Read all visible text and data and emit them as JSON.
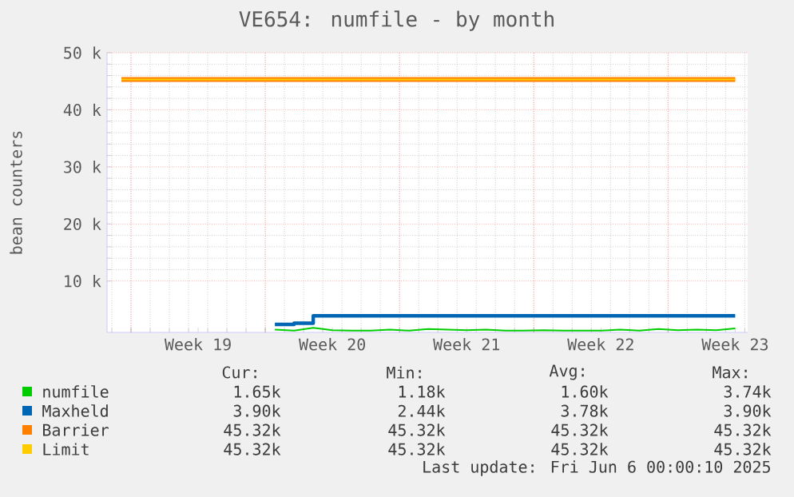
{
  "chart_data": {
    "type": "line",
    "title": "VE654: numfile - by month",
    "ylabel": "bean counters",
    "categories": [
      null,
      null,
      null,
      null,
      "Week 19",
      null,
      null,
      null,
      null,
      null,
      null,
      "Week 20",
      null,
      null,
      null,
      null,
      null,
      null,
      "Week 21",
      null,
      null,
      null,
      null,
      null,
      null,
      "Week 22",
      null,
      null,
      null,
      null,
      null,
      null,
      "Week 23"
    ],
    "ylim": [
      1000,
      50000
    ],
    "yticks": [
      {
        "value": 10000,
        "label": "10 k"
      },
      {
        "value": 20000,
        "label": "20 k"
      },
      {
        "value": 30000,
        "label": "30 k"
      },
      {
        "value": 40000,
        "label": "40 k"
      },
      {
        "value": 50000,
        "label": "50 k"
      }
    ],
    "grid": true,
    "legend": "bottom",
    "series": [
      {
        "name": "numfile",
        "color": "#00cc00",
        "values": [
          null,
          null,
          null,
          null,
          null,
          null,
          null,
          null,
          1500,
          1300,
          1800,
          1400,
          1300,
          1300,
          1500,
          1300,
          1600,
          1500,
          1400,
          1500,
          1300,
          1300,
          1400,
          1300,
          1300,
          1300,
          1500,
          1300,
          1600,
          1400,
          1500,
          1400,
          1700
        ]
      },
      {
        "name": "Maxheld",
        "type": "step",
        "color": "#0066b3",
        "values": [
          null,
          null,
          null,
          null,
          null,
          null,
          null,
          null,
          2400,
          2600,
          3900,
          3900,
          3900,
          3900,
          3900,
          3900,
          3900,
          3900,
          3900,
          3900,
          3900,
          3900,
          3900,
          3900,
          3900,
          3900,
          3900,
          3900,
          3900,
          3900,
          3900,
          3900,
          3900
        ]
      },
      {
        "name": "Barrier",
        "color": "#ff8000",
        "values": [
          45300,
          45300,
          45300,
          45300,
          45300,
          45300,
          45300,
          45300,
          45300,
          45300,
          45300,
          45300,
          45300,
          45300,
          45300,
          45300,
          45300,
          45300,
          45300,
          45300,
          45300,
          45300,
          45300,
          45300,
          45300,
          45300,
          45300,
          45300,
          45300,
          45300,
          45300,
          45300,
          45300
        ]
      },
      {
        "name": "Limit",
        "color": "#ffcc00",
        "values": [
          45300,
          45300,
          45300,
          45300,
          45300,
          45300,
          45300,
          45300,
          45300,
          45300,
          45300,
          45300,
          45300,
          45300,
          45300,
          45300,
          45300,
          45300,
          45300,
          45300,
          45300,
          45300,
          45300,
          45300,
          45300,
          45300,
          45300,
          45300,
          45300,
          45300,
          45300,
          45300,
          45300
        ]
      }
    ],
    "annotations": [
      "Cur:",
      "Min:",
      "Avg:",
      "Max:",
      "1.65k",
      "1.18k",
      "1.60k",
      "3.74k",
      "3.90k",
      "2.44k",
      "3.78k",
      "3.90k",
      "45.32k",
      "45.32k",
      "45.32k",
      "45.32k",
      "45.32k",
      "45.32k",
      "45.32k",
      "45.32k",
      "Last update: Fri Jun  6 00:00:10 2025"
    ]
  }
}
